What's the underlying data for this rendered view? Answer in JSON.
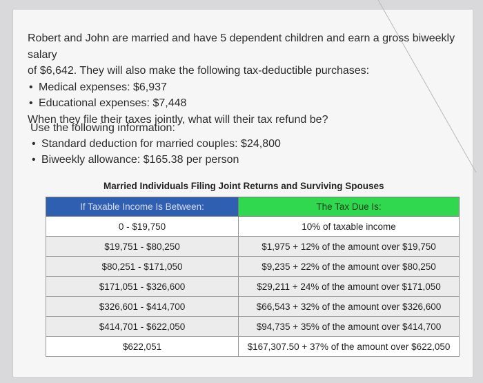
{
  "problem": {
    "line1": "Robert and John are married and have 5 dependent children and earn a gross biweekly salary",
    "line2": "of $6,642. They will also make the following tax-deductible purchases:",
    "bullets": [
      "Medical expenses: $6,937",
      "Educational expenses: $7,448"
    ],
    "question": "When they file their taxes jointly, what will their tax refund be?"
  },
  "info": {
    "intro": "Use the following information:",
    "bullets": [
      "Standard deduction for married couples: $24,800",
      "Biweekly allowance: $165.38 per person"
    ]
  },
  "table": {
    "title": "Married Individuals Filing Joint Returns and Surviving Spouses",
    "headers": [
      "If Taxable Income Is Between:",
      "The Tax Due Is:"
    ],
    "rows": [
      [
        "0 - $19,750",
        "10% of taxable income"
      ],
      [
        "$19,751 - $80,250",
        "$1,975 + 12% of the amount over $19,750"
      ],
      [
        "$80,251 - $171,050",
        "$9,235 + 22% of the amount over $80,250"
      ],
      [
        "$171,051 - $326,600",
        "$29,211 + 24% of the amount over $171,050"
      ],
      [
        "$326,601 - $414,700",
        "$66,543 + 32% of the amount over $326,600"
      ],
      [
        "$414,701 - $622,050",
        "$94,735 + 35% of the amount over $414,700"
      ],
      [
        "$622,051",
        "$167,307.50 + 37% of the amount over $622,050"
      ]
    ],
    "header_colors": {
      "col1": "#2f5fb0",
      "col2": "#2fd84f"
    }
  }
}
